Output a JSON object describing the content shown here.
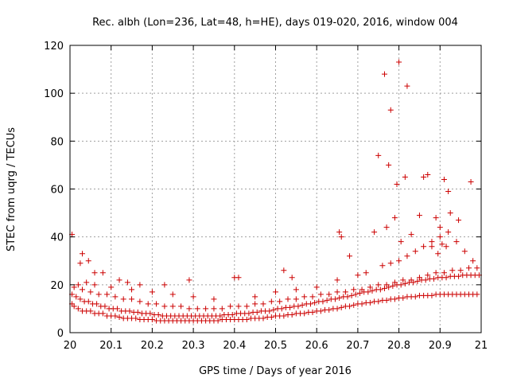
{
  "chart_data": {
    "type": "scatter",
    "title": "Rec. albh (Lon=236, Lat=48, h=HE), days 019-020, 2016, window 004",
    "xlabel": "GPS time / Days of year 2016",
    "ylabel": "STEC from uqrg / TECUs",
    "xlim": [
      20,
      21
    ],
    "ylim": [
      0,
      120
    ],
    "x_ticks": [
      20,
      20.1,
      20.2,
      20.3,
      20.4,
      20.5,
      20.6,
      20.7,
      20.8,
      20.9,
      21
    ],
    "x_tick_labels": [
      "20",
      "20.1",
      "20.2",
      "20.3",
      "20.4",
      "20.5",
      "20.6",
      "20.7",
      "20.8",
      "20.9",
      "21"
    ],
    "y_ticks": [
      0,
      20,
      40,
      60,
      80,
      100,
      120
    ],
    "y_tick_labels": [
      "0",
      "20",
      "40",
      "60",
      "80",
      "100",
      "120"
    ],
    "grid": true,
    "marker": "+",
    "marker_color": "#cc0000",
    "series": [
      {
        "x": [
          20.005,
          20.01,
          20.02,
          20.03,
          20.04,
          20.05,
          20.06,
          20.07,
          20.08,
          20.09,
          20.1,
          20.11,
          20.12,
          20.13,
          20.14,
          20.15,
          20.16,
          20.17,
          20.18,
          20.19,
          20.2,
          20.21,
          20.22,
          20.23,
          20.24,
          20.25,
          20.26,
          20.27,
          20.28,
          20.29,
          20.3,
          20.31,
          20.32,
          20.33,
          20.34,
          20.35,
          20.36,
          20.37,
          20.38,
          20.39,
          20.4,
          20.41,
          20.42,
          20.43,
          20.44,
          20.45,
          20.46,
          20.47,
          20.48,
          20.49,
          20.5,
          20.51,
          20.52,
          20.53,
          20.54,
          20.55,
          20.56,
          20.57,
          20.58,
          20.59,
          20.6,
          20.61,
          20.62,
          20.63,
          20.64,
          20.65,
          20.66,
          20.67,
          20.68,
          20.69,
          20.7,
          20.71,
          20.72,
          20.73,
          20.74,
          20.75,
          20.76,
          20.77,
          20.78,
          20.79,
          20.8,
          20.81,
          20.82,
          20.83,
          20.84,
          20.85,
          20.86,
          20.87,
          20.88,
          20.89,
          20.9,
          20.91,
          20.92,
          20.93,
          20.94,
          20.95,
          20.96,
          20.97,
          20.98,
          20.99,
          20.005,
          20.015,
          20.025,
          20.035,
          20.045,
          20.055,
          20.065,
          20.075,
          20.085,
          20.095,
          20.105,
          20.115,
          20.125,
          20.135,
          20.145,
          20.155,
          20.165,
          20.175,
          20.185,
          20.195,
          20.205,
          20.215,
          20.225,
          20.235,
          20.245,
          20.255,
          20.265,
          20.275,
          20.285,
          20.295,
          20.305,
          20.315,
          20.325,
          20.335,
          20.345,
          20.355,
          20.365,
          20.375,
          20.385,
          20.395,
          20.405,
          20.415,
          20.425,
          20.435,
          20.445,
          20.455,
          20.465,
          20.475,
          20.485,
          20.495,
          20.505,
          20.515,
          20.525,
          20.535,
          20.545,
          20.555,
          20.565,
          20.575,
          20.585,
          20.595,
          20.605,
          20.615,
          20.625,
          20.635,
          20.645,
          20.655,
          20.665,
          20.675,
          20.685,
          20.695,
          20.705,
          20.715,
          20.725,
          20.735,
          20.745,
          20.755,
          20.765,
          20.775,
          20.785,
          20.795,
          20.805,
          20.815,
          20.825,
          20.835,
          20.845,
          20.855,
          20.865,
          20.875,
          20.885,
          20.895,
          20.905,
          20.915,
          20.925,
          20.935,
          20.945,
          20.955,
          20.965,
          20.975,
          20.985,
          20.995,
          20.01,
          20.03,
          20.05,
          20.07,
          20.09,
          20.11,
          20.13,
          20.15,
          20.17,
          20.19,
          20.21,
          20.23,
          20.25,
          20.27,
          20.29,
          20.31,
          20.33,
          20.35,
          20.37,
          20.39,
          20.41,
          20.43,
          20.45,
          20.47,
          20.49,
          20.51,
          20.53,
          20.55,
          20.57,
          20.59,
          20.61,
          20.63,
          20.65,
          20.67,
          20.69,
          20.71,
          20.73,
          20.75,
          20.77,
          20.79,
          20.81,
          20.83,
          20.85,
          20.87,
          20.89,
          20.91,
          20.93,
          20.95,
          20.97,
          20.99,
          20.005,
          20.025,
          20.03,
          20.045,
          20.06,
          20.08,
          20.12,
          20.14,
          20.17,
          20.23,
          20.29,
          20.4,
          20.41,
          20.52,
          20.54,
          20.655,
          20.66,
          20.68,
          20.74,
          20.75,
          20.765,
          20.77,
          20.775,
          20.78,
          20.79,
          20.795,
          20.8,
          20.805,
          20.815,
          20.82,
          20.83,
          20.85,
          20.86,
          20.87,
          20.88,
          20.89,
          20.895,
          20.9,
          20.905,
          20.91,
          20.915,
          20.92,
          20.925,
          20.945,
          20.975,
          20.02,
          20.04,
          20.06,
          20.1,
          20.15,
          20.2,
          20.25,
          20.3,
          20.35,
          20.45,
          20.5,
          20.55,
          20.6,
          20.65,
          20.7,
          20.72,
          20.76,
          20.78,
          20.8,
          20.82,
          20.84,
          20.86,
          20.88,
          20.9,
          20.92,
          20.94,
          20.96,
          20.98
        ],
        "y": [
          12,
          11,
          10,
          9,
          9,
          9,
          8,
          8,
          8,
          7,
          7,
          7,
          6.5,
          6,
          6,
          6,
          6,
          5.5,
          5.5,
          5.5,
          5.5,
          5,
          5,
          5,
          5,
          5,
          5,
          5,
          5,
          5,
          5,
          5,
          5,
          5,
          5,
          5,
          5,
          5.5,
          5.5,
          5.5,
          5.5,
          5.5,
          5.5,
          5.5,
          6,
          6,
          6,
          6,
          6.5,
          6.5,
          7,
          7,
          7,
          7.5,
          7.5,
          8,
          8,
          8,
          8.5,
          8.5,
          9,
          9,
          9.5,
          9.5,
          10,
          10,
          10.5,
          11,
          11,
          11.5,
          12,
          12,
          12.5,
          12.5,
          13,
          13,
          13.5,
          13.5,
          14,
          14,
          14.5,
          14.5,
          15,
          15,
          15,
          15.5,
          15.5,
          15.5,
          15.5,
          16,
          16,
          16,
          16,
          16,
          16,
          16,
          16,
          16,
          16,
          16,
          16,
          15,
          14,
          13,
          13,
          12,
          12,
          11,
          11,
          10,
          10,
          10,
          9,
          9,
          9,
          8.5,
          8.5,
          8,
          8,
          8,
          7.5,
          7.5,
          7,
          7,
          7,
          7,
          7,
          7,
          7,
          7,
          7,
          7,
          7,
          7,
          7,
          7,
          7,
          7.5,
          7.5,
          7.5,
          8,
          8,
          8,
          8,
          8.5,
          8.5,
          9,
          9,
          9,
          9.5,
          10,
          10,
          10.5,
          10.5,
          11,
          11,
          11.5,
          12,
          12,
          12.5,
          13,
          13,
          13.5,
          14,
          14,
          14.5,
          15,
          15,
          15.5,
          16,
          16.5,
          17,
          17,
          17.5,
          18,
          18,
          18.5,
          19,
          19.5,
          20,
          20,
          20.5,
          21,
          21,
          21.5,
          22,
          22,
          22.5,
          22.5,
          23,
          23,
          23,
          23.5,
          23.5,
          23.5,
          24,
          24,
          24,
          24,
          24,
          19,
          18,
          17,
          16,
          16,
          15,
          14,
          14,
          13,
          12,
          12,
          11,
          11,
          11,
          10,
          10,
          10,
          10,
          10,
          11,
          11,
          11,
          12,
          12,
          13,
          13,
          14,
          14,
          15,
          15,
          16,
          16,
          17,
          17,
          18,
          18,
          19,
          20,
          20,
          21,
          22,
          22,
          23,
          24,
          25,
          25,
          26,
          26,
          27,
          27,
          41,
          29,
          33,
          30,
          25,
          25,
          22,
          21,
          20,
          20,
          22,
          23,
          23,
          26,
          23,
          42,
          40,
          32,
          42,
          74,
          108,
          44,
          70,
          93,
          48,
          62,
          113,
          38,
          65,
          103,
          41,
          49,
          65,
          66,
          36,
          48,
          33,
          44,
          37,
          64,
          36,
          59,
          50,
          47,
          63,
          20,
          21,
          20,
          19,
          18,
          17,
          16,
          15,
          14,
          15,
          17,
          18,
          19,
          22,
          24,
          25,
          28,
          29,
          30,
          32,
          34,
          36,
          38,
          40,
          42,
          38,
          34,
          30
        ]
      }
    ]
  }
}
